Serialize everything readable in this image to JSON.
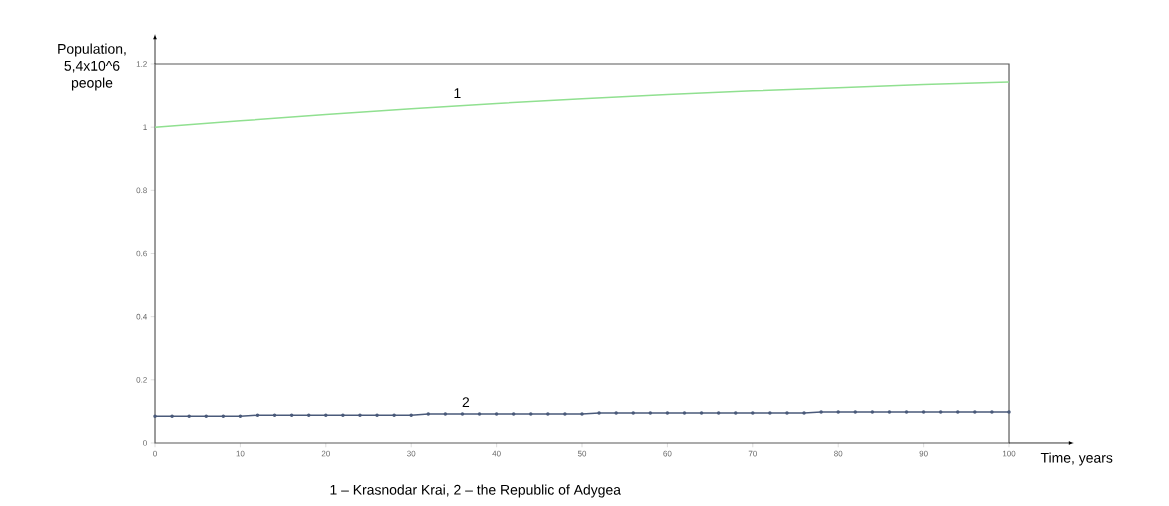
{
  "chart_data": {
    "type": "line",
    "xlabel": "Time, years",
    "ylabel": "Population, 5,4x10^6 people",
    "xlim": [
      0,
      100
    ],
    "ylim": [
      0,
      1.2
    ],
    "xticks": [
      0,
      10,
      20,
      30,
      40,
      50,
      60,
      70,
      80,
      90,
      100
    ],
    "yticks": [
      0,
      0.2,
      0.4,
      0.6,
      0.8,
      1,
      1.2
    ],
    "grid": false,
    "series": [
      {
        "color": "#90e090",
        "marker": "none",
        "x": [
          0,
          10,
          20,
          30,
          40,
          50,
          60,
          70,
          80,
          90,
          100
        ],
        "values": [
          1.0,
          1.02,
          1.04,
          1.058,
          1.075,
          1.09,
          1.103,
          1.115,
          1.125,
          1.135,
          1.143
        ]
      },
      {
        "color": "#4a5a7a",
        "marker": "circle",
        "x": [
          0,
          2,
          4,
          6,
          8,
          10,
          12,
          14,
          16,
          18,
          20,
          22,
          24,
          26,
          28,
          30,
          32,
          34,
          36,
          38,
          40,
          42,
          44,
          46,
          48,
          50,
          52,
          54,
          56,
          58,
          60,
          62,
          64,
          66,
          68,
          70,
          72,
          74,
          76,
          78,
          80,
          82,
          84,
          86,
          88,
          90,
          92,
          94,
          96,
          98,
          100
        ],
        "values": [
          0.085,
          0.085,
          0.085,
          0.085,
          0.085,
          0.085,
          0.088,
          0.088,
          0.088,
          0.088,
          0.088,
          0.088,
          0.088,
          0.088,
          0.088,
          0.088,
          0.092,
          0.092,
          0.092,
          0.092,
          0.092,
          0.092,
          0.092,
          0.092,
          0.092,
          0.092,
          0.095,
          0.095,
          0.095,
          0.095,
          0.095,
          0.095,
          0.095,
          0.095,
          0.095,
          0.095,
          0.095,
          0.095,
          0.095,
          0.098,
          0.098,
          0.098,
          0.098,
          0.098,
          0.098,
          0.098,
          0.098,
          0.098,
          0.098,
          0.098,
          0.098
        ]
      }
    ],
    "annotations": [
      "1",
      "2",
      "1 – Krasnodar Krai, 2 – the Republic of Adygea"
    ]
  }
}
